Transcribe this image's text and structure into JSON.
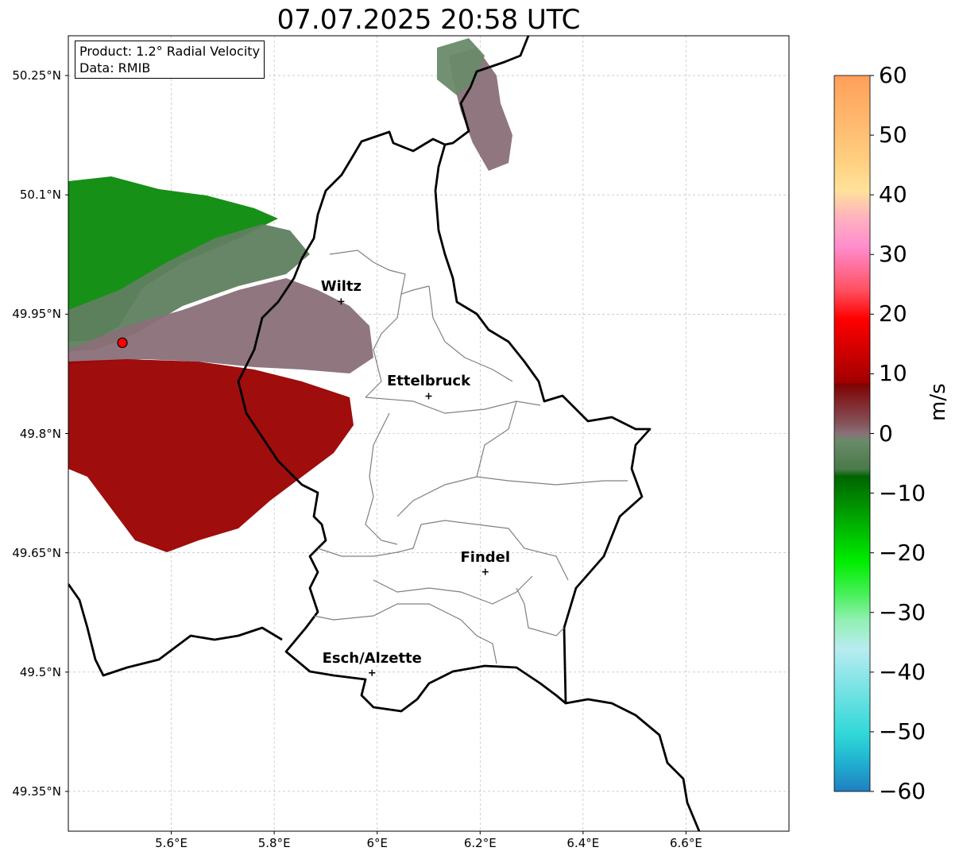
{
  "title": "07.07.2025 20:58 UTC",
  "info_box": {
    "product": "Product: 1.2° Radial Velocity",
    "data_source": "Data: RMIB"
  },
  "axes": {
    "lat_ticks": [
      "50.25°N",
      "50.1°N",
      "49.95°N",
      "49.8°N",
      "49.65°N",
      "49.5°N",
      "49.35°N"
    ],
    "lon_ticks": [
      "5.6°E",
      "5.8°E",
      "6°E",
      "6.2°E",
      "6.4°E",
      "6.6°E"
    ],
    "lat_values": [
      50.25,
      50.1,
      49.95,
      49.8,
      49.65,
      49.5,
      49.35
    ],
    "lon_values": [
      5.6,
      5.8,
      6.0,
      6.2,
      6.4,
      6.6
    ],
    "lon_range": [
      5.4,
      6.8
    ],
    "lat_range": [
      49.3,
      50.3
    ],
    "grid": true
  },
  "cities": [
    {
      "name": "Wiltz",
      "lon": 5.93,
      "lat": 49.966
    },
    {
      "name": "Ettelbruck",
      "lon": 6.1,
      "lat": 49.847
    },
    {
      "name": "Findel",
      "lon": 6.21,
      "lat": 49.626
    },
    {
      "name": "Esch/Alzette",
      "lon": 5.99,
      "lat": 49.499
    }
  ],
  "radar_site": {
    "lon": 5.505,
    "lat": 49.914,
    "color": "#ff0000"
  },
  "colorbar": {
    "label": "m/s",
    "min": -60,
    "max": 60,
    "ticks": [
      "60",
      "50",
      "40",
      "30",
      "20",
      "10",
      "0",
      "−10",
      "−20",
      "−30",
      "−40",
      "−50",
      "−60"
    ],
    "tick_values": [
      60,
      50,
      40,
      30,
      20,
      10,
      0,
      -10,
      -20,
      -30,
      -40,
      -50,
      -60
    ],
    "colors": {
      "outbound_far": "#ff9f5a",
      "outbound_pale": "#ffe29a",
      "pink": "#ff8ccc",
      "red_bright": "#ff0000",
      "red_dark": "#7f0000",
      "zero_mauve": "#8a6f78",
      "zero_green": "#5a7a5a",
      "green_dark": "#006400",
      "green_bright": "#00ee00",
      "cyan": "#30d8d8",
      "blue": "#1f7fc0"
    }
  }
}
